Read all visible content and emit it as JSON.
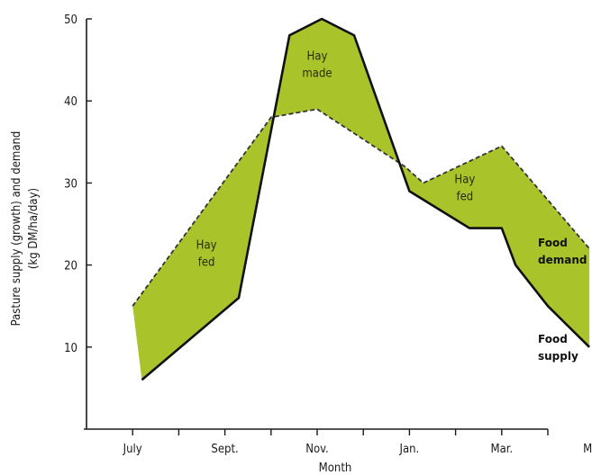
{
  "chart_data": {
    "type": "area",
    "title": "",
    "xlabel": "Month",
    "ylabel_lines": [
      "Pasture supply (growth) and demand",
      "(kg DM/ha/day)"
    ],
    "categories": [
      "July",
      "Sept.",
      "Nov.",
      "Jan.",
      "Mar.",
      "May"
    ],
    "xlim": [
      0,
      10
    ],
    "ylim": [
      0,
      50
    ],
    "y_ticks": [
      {
        "value": 10,
        "label": "10"
      },
      {
        "value": 20,
        "label": "20"
      },
      {
        "value": 30,
        "label": "30"
      },
      {
        "value": 40,
        "label": "40"
      },
      {
        "value": 50,
        "label": "50"
      }
    ],
    "grid": false,
    "fill_color": "#a9c42a",
    "series": [
      {
        "name_lines": [
          "Food",
          "demand"
        ],
        "style": "dashed",
        "x": [
          1,
          4,
          5,
          6.9,
          7.3,
          9,
          10.9
        ],
        "y": [
          15,
          38,
          39,
          32,
          30,
          34.5,
          22
        ]
      },
      {
        "name_lines": [
          "Food",
          "supply"
        ],
        "style": "solid",
        "x": [
          1.2,
          3.3,
          4.4,
          5.1,
          5.8,
          7,
          8.3,
          9,
          9.3,
          10,
          10.9
        ],
        "y": [
          6,
          16,
          48,
          50,
          48,
          29,
          24.5,
          24.5,
          20,
          15,
          10
        ]
      }
    ],
    "annotations": [
      {
        "lines": [
          "Hay",
          "fed"
        ],
        "x": 2.6,
        "y": 22
      },
      {
        "lines": [
          "Hay",
          "made"
        ],
        "x": 5,
        "y": 45
      },
      {
        "lines": [
          "Hay",
          "fed"
        ],
        "x": 8.2,
        "y": 30
      }
    ]
  }
}
